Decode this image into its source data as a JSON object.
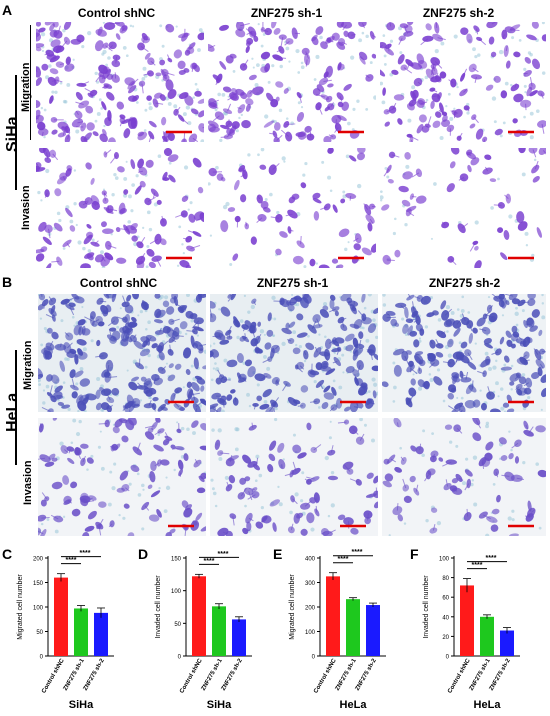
{
  "panel_letters": [
    "A",
    "B",
    "C",
    "D",
    "E",
    "F"
  ],
  "conditions": [
    "Control shNC",
    "ZNF275 sh-1",
    "ZNF275 sh-2"
  ],
  "row_labels": {
    "migration": "Migration",
    "invasion": "Invasion"
  },
  "cell_lines": {
    "siha": "SiHa",
    "hela": "HeLa"
  },
  "colors": {
    "control": "#ff1a1a",
    "sh1": "#1ec81e",
    "sh2": "#1a1aff",
    "stain_siha": "#7a3fd0",
    "stain_hela": "#4b4fb8",
    "scalebar": "#e00000"
  },
  "significance": "****",
  "chart_data": [
    {
      "type": "bar",
      "panel": "C",
      "categories": [
        "Control shNC",
        "ZNF275 sh-1",
        "ZNF275 sh-2"
      ],
      "values": [
        160,
        97,
        88
      ],
      "errors": [
        8,
        6,
        10
      ],
      "ylabel": "Migrated cell number",
      "xlabel": "SiHa",
      "ylim": [
        0,
        200
      ],
      "yticks": [
        0,
        50,
        100,
        150,
        200
      ]
    },
    {
      "type": "bar",
      "panel": "D",
      "categories": [
        "Control shNC",
        "ZNF275 sh-1",
        "ZNF275 sh-2"
      ],
      "values": [
        122,
        76,
        56
      ],
      "errors": [
        3,
        4,
        4
      ],
      "ylabel": "Invaded cell number",
      "xlabel": "SiHa",
      "ylim": [
        0,
        150
      ],
      "yticks": [
        0,
        50,
        100,
        150
      ]
    },
    {
      "type": "bar",
      "panel": "E",
      "categories": [
        "Control shNC",
        "ZNF275 sh-1",
        "ZNF275 sh-2"
      ],
      "values": [
        325,
        232,
        208
      ],
      "errors": [
        15,
        6,
        8
      ],
      "ylabel": "Migrated cell number",
      "xlabel": "HeLa",
      "ylim": [
        0,
        400
      ],
      "yticks": [
        0,
        100,
        200,
        300,
        400
      ]
    },
    {
      "type": "bar",
      "panel": "F",
      "categories": [
        "Control shNC",
        "ZNF275 sh-1",
        "ZNF275 sh-2"
      ],
      "values": [
        72,
        40,
        26
      ],
      "errors": [
        7,
        2,
        3
      ],
      "ylabel": "Invaded cell number",
      "xlabel": "HeLa",
      "ylim": [
        0,
        100
      ],
      "yticks": [
        0,
        20,
        40,
        60,
        80,
        100
      ]
    }
  ]
}
